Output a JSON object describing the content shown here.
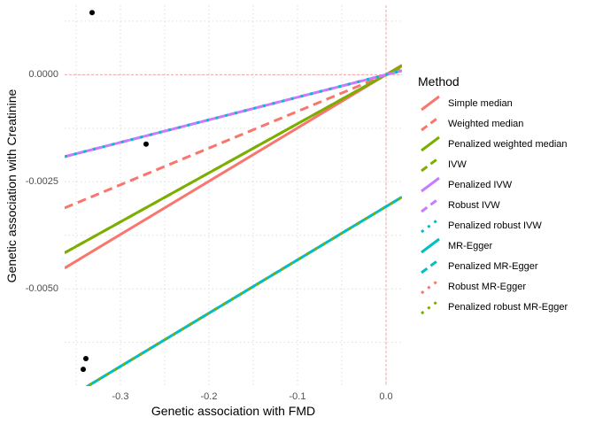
{
  "chart_data": {
    "type": "scatter",
    "title": "",
    "xlabel": "Genetic association with FMD",
    "ylabel": "Genetic association with Creatinine",
    "xlim": [
      -0.363,
      0.018
    ],
    "ylim": [
      -0.00727,
      0.00162
    ],
    "x_ticks": [
      -0.3,
      -0.2,
      -0.1,
      0.0
    ],
    "x_tick_labels": [
      "-0.3",
      "-0.2",
      "-0.1",
      "0.0"
    ],
    "y_ticks": [
      0.0,
      -0.0025,
      -0.005
    ],
    "y_tick_labels": [
      "0.0000",
      "-0.0025",
      "-0.0050"
    ],
    "grid": true,
    "reference_lines": {
      "x": 0,
      "y": 0
    },
    "points": [
      {
        "x": -0.332,
        "y": 0.00145
      },
      {
        "x": -0.271,
        "y": -0.00162
      },
      {
        "x": -0.339,
        "y": -0.00663
      },
      {
        "x": -0.342,
        "y": -0.00688
      }
    ],
    "legend_title": "Method",
    "legend_position": "right",
    "series": [
      {
        "name": "Simple median",
        "intercept": 0,
        "slope": 0.01244,
        "color": "#F8766D",
        "dash": "solid"
      },
      {
        "name": "Weighted median",
        "intercept": 0,
        "slope": 0.00857,
        "color": "#F8766D",
        "dash": "dashed"
      },
      {
        "name": "Penalized weighted median",
        "intercept": 0,
        "slope": 0.01146,
        "color": "#7CAE00",
        "dash": "solid"
      },
      {
        "name": "IVW",
        "intercept": 0,
        "slope": 0.01146,
        "color": "#7CAE00",
        "dash": "dashed"
      },
      {
        "name": "Penalized IVW",
        "intercept": 0,
        "slope": 0.00527,
        "color": "#C77CFF",
        "dash": "solid"
      },
      {
        "name": "Robust IVW",
        "intercept": 0,
        "slope": 0.00527,
        "color": "#C77CFF",
        "dash": "dashed"
      },
      {
        "name": "Penalized robust IVW",
        "intercept": 0,
        "slope": 0.00527,
        "color": "#00BFC4",
        "dash": "dotted"
      },
      {
        "name": "MR-Egger",
        "intercept": -0.00308,
        "slope": 0.01244,
        "color": "#00BFC4",
        "dash": "solid"
      },
      {
        "name": "Penalized MR-Egger",
        "intercept": -0.00308,
        "slope": 0.01244,
        "color": "#00BFC4",
        "dash": "dashed"
      },
      {
        "name": "Robust MR-Egger",
        "intercept": -0.00308,
        "slope": 0.01244,
        "color": "#F8766D",
        "dash": "dotted"
      },
      {
        "name": "Penalized robust MR-Egger",
        "intercept": -0.00308,
        "slope": 0.01244,
        "color": "#7CAE00",
        "dash": "dotted"
      }
    ]
  }
}
